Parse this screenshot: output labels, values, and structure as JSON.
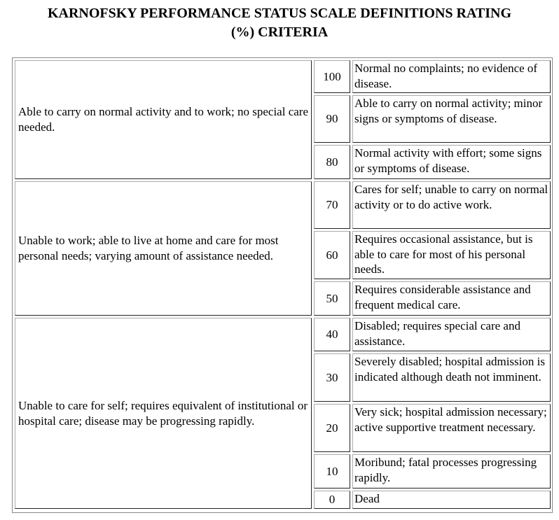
{
  "title_line1": "KARNOFSKY PERFORMANCE STATUS SCALE DEFINITIONS RATING",
  "title_line2": "(%) CRITERIA",
  "groups": [
    {
      "description": "Able to carry on normal activity and to work; no special care needed.",
      "rows": [
        {
          "rating": "100",
          "criteria": "Normal no complaints; no evidence of disease."
        },
        {
          "rating": "90",
          "criteria": "Able to carry on normal activity; minor signs or symptoms of disease."
        },
        {
          "rating": "80",
          "criteria": "Normal activity with effort; some signs or symptoms of disease."
        }
      ]
    },
    {
      "description": "Unable to work; able to live at home and care for most personal needs; varying amount of assistance needed.",
      "rows": [
        {
          "rating": "70",
          "criteria": "Cares for self; unable to carry on normal activity or to do active work."
        },
        {
          "rating": "60",
          "criteria": "Requires occasional assistance, but is able to care for most of his personal needs."
        },
        {
          "rating": "50",
          "criteria": "Requires considerable assistance and frequent medical care."
        }
      ]
    },
    {
      "description": "Unable to care for self; requires equivalent of institutional or hospital care; disease may be progressing rapidly.",
      "rows": [
        {
          "rating": "40",
          "criteria": "Disabled; requires special care and assistance."
        },
        {
          "rating": "30",
          "criteria": "Severely disabled; hospital admission is indicated although death not imminent."
        },
        {
          "rating": "20",
          "criteria": "Very sick; hospital admission necessary; active supportive treatment necessary."
        },
        {
          "rating": "10",
          "criteria": "Moribund; fatal processes progressing rapidly."
        },
        {
          "rating": "0",
          "criteria": "Dead"
        }
      ]
    }
  ]
}
